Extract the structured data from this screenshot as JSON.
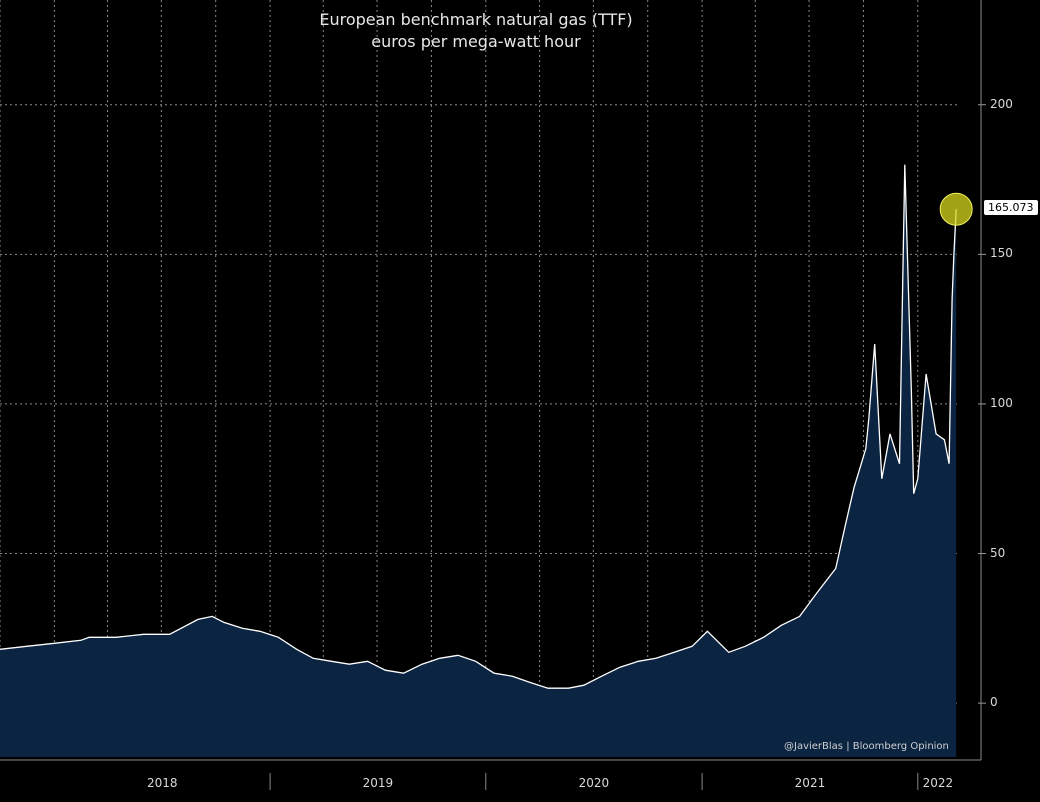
{
  "chart_data": {
    "type": "area",
    "title": "European benchmark natural gas (TTF)",
    "subtitle": "euros per mega-watt hour",
    "xlabel": "",
    "ylabel": "",
    "ylim": [
      -18,
      235
    ],
    "yticks": [
      0,
      50,
      100,
      150,
      200
    ],
    "xlim": [
      "2017-10-01",
      "2022-03-10"
    ],
    "xtick_labels": [
      "2018",
      "2019",
      "2020",
      "2021",
      "2022"
    ],
    "grid": true,
    "last_value_label": "165.073",
    "credit": "@JavierBlas | Bloomberg Opinion",
    "colors": {
      "background": "#000000",
      "area_fill": "#0b2441",
      "line": "#ffffff",
      "highlight": "#d8d81e",
      "grid": "#8a8a8a"
    },
    "series": [
      {
        "x": [
          "2017-10-01",
          "2017-11-15",
          "2018-01-01",
          "2018-02-15",
          "2018-03-01",
          "2018-04-15",
          "2018-06-01",
          "2018-07-15",
          "2018-09-01",
          "2018-09-25",
          "2018-10-15",
          "2018-11-15",
          "2018-12-15",
          "2019-01-15",
          "2019-02-15",
          "2019-03-15",
          "2019-04-15",
          "2019-05-15",
          "2019-06-15",
          "2019-07-15",
          "2019-08-15",
          "2019-09-15",
          "2019-10-15",
          "2019-11-15",
          "2019-12-15",
          "2020-01-15",
          "2020-02-15",
          "2020-03-15",
          "2020-04-15",
          "2020-05-20",
          "2020-06-15",
          "2020-07-15",
          "2020-08-15",
          "2020-09-15",
          "2020-10-15",
          "2020-11-15",
          "2020-12-15",
          "2021-01-10",
          "2021-02-15",
          "2021-03-15",
          "2021-04-15",
          "2021-05-15",
          "2021-06-15",
          "2021-07-15",
          "2021-08-15",
          "2021-09-01",
          "2021-09-15",
          "2021-10-05",
          "2021-10-10",
          "2021-10-20",
          "2021-11-01",
          "2021-11-15",
          "2021-12-01",
          "2021-12-10",
          "2021-12-21",
          "2021-12-25",
          "2022-01-01",
          "2022-01-15",
          "2022-02-01",
          "2022-02-15",
          "2022-02-23",
          "2022-02-28",
          "2022-03-03",
          "2022-03-07"
        ],
        "values": [
          18,
          19,
          20,
          21,
          22,
          22,
          23,
          23,
          28,
          29,
          27,
          25,
          24,
          22,
          18,
          15,
          14,
          13,
          14,
          11,
          10,
          13,
          15,
          16,
          14,
          10,
          9,
          7,
          5,
          5,
          6,
          9,
          12,
          14,
          15,
          17,
          19,
          24,
          17,
          19,
          22,
          26,
          29,
          37,
          45,
          60,
          72,
          85,
          95,
          120,
          75,
          90,
          80,
          180,
          105,
          70,
          75,
          110,
          90,
          88,
          80,
          135,
          150,
          165.073
        ]
      }
    ]
  }
}
